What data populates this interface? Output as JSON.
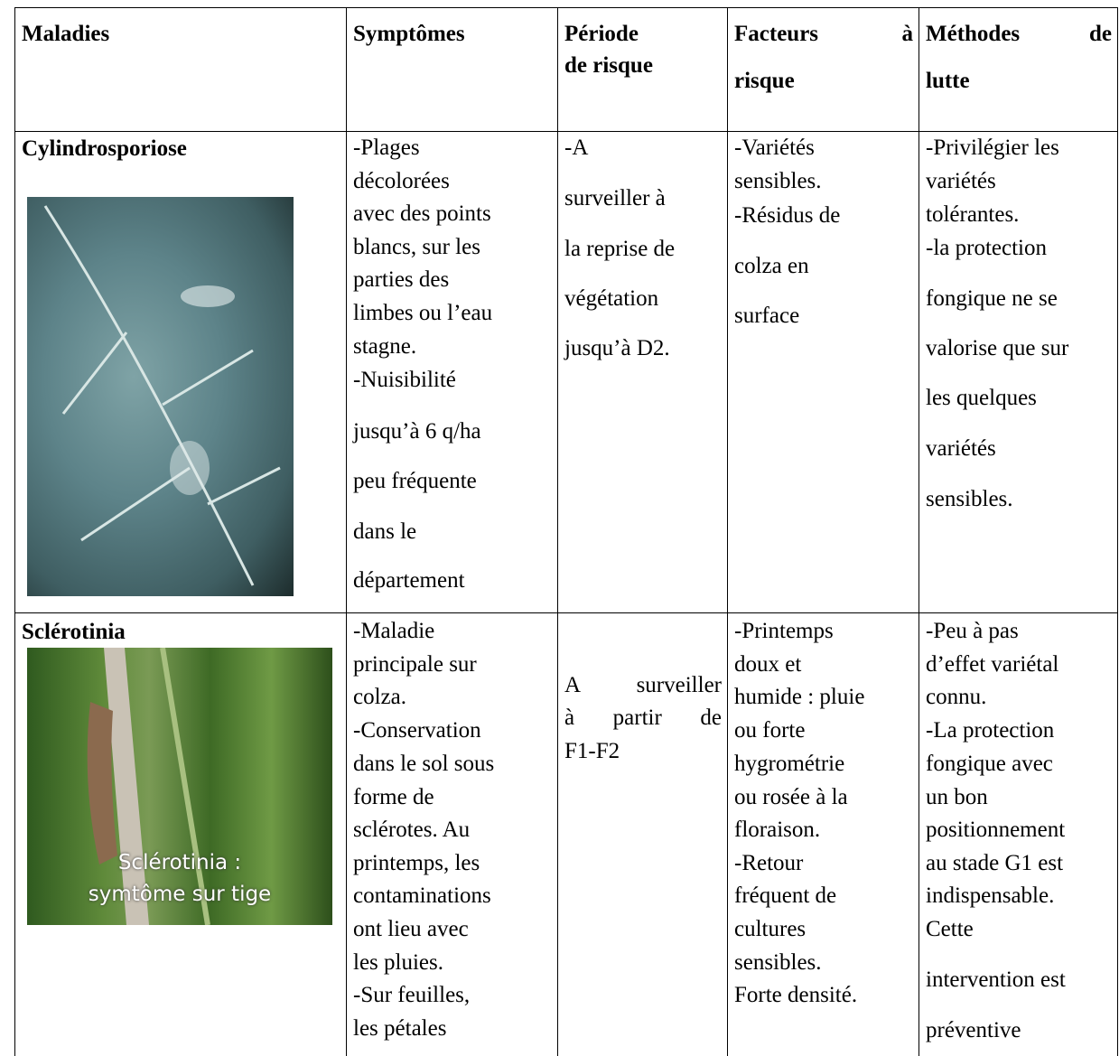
{
  "table": {
    "header": [
      [
        "Maladies"
      ],
      [
        "Symptômes"
      ],
      [
        "Période",
        "de risque"
      ],
      [
        "Facteurs à",
        "risque"
      ],
      [
        "Méthodes de",
        "lutte"
      ]
    ],
    "rows": [
      {
        "disease": "Cylindrosporiose",
        "image_caption": [],
        "cells": [
          [
            "-Plages",
            "décolorées",
            "avec des points",
            "blancs, sur les",
            "parties des",
            "limbes ou l’eau",
            "stagne.",
            "-Nuisibilité",
            "jusqu’à 6 q/ha",
            "peu fréquente",
            "dans le",
            "département"
          ],
          [
            "-A",
            "surveiller à",
            "la reprise de",
            "végétation",
            "jusqu’à D2."
          ],
          [
            "-Variétés",
            "sensibles.",
            "-Résidus de",
            "colza en",
            "surface"
          ],
          [
            "-Privilégier les",
            "variétés",
            "tolérantes.",
            "-la protection",
            "fongique ne se",
            "valorise que sur",
            "les quelques",
            "variétés",
            "sensibles."
          ]
        ]
      },
      {
        "disease": "Sclérotinia",
        "image_caption": [
          "Sclérotinia :",
          "symtôme sur tige"
        ],
        "cells": [
          [
            "-Maladie",
            "principale sur",
            "colza.",
            "-Conservation",
            "dans le sol sous",
            "forme de",
            "sclérotes. Au",
            "printemps, les",
            "contaminations",
            "ont lieu avec",
            "les pluies.",
            "-Sur feuilles,",
            "les pétales"
          ],
          [
            "A surveiller",
            "à partir de",
            "F1-F2"
          ],
          [
            "-Printemps",
            "doux et",
            "humide : pluie",
            "ou forte",
            "hygrométrie",
            "ou rosée à la",
            "floraison.",
            "-Retour",
            "fréquent de",
            "cultures",
            "sensibles.",
            "Forte densité."
          ],
          [
            "-Peu à pas",
            "d’effet variétal",
            "connu.",
            "-La protection",
            "fongique avec",
            "un bon",
            "positionnement",
            "au stade G1 est",
            "indispensable.",
            "Cette",
            "intervention est",
            "préventive"
          ]
        ]
      }
    ]
  }
}
